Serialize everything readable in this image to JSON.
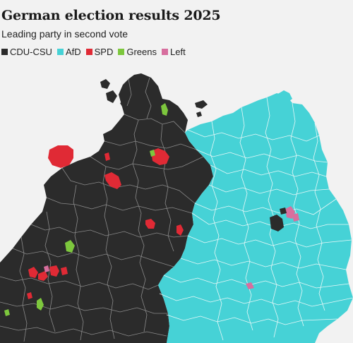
{
  "title": "German election results 2025",
  "subtitle": "Leading party in second vote",
  "legend": [
    {
      "label": "CDU-CSU",
      "color": "#2b2b2b"
    },
    {
      "label": "AfD",
      "color": "#46d2d6"
    },
    {
      "label": "SPD",
      "color": "#e02a35"
    },
    {
      "label": "Greens",
      "color": "#7dc73d"
    },
    {
      "label": "Left",
      "color": "#d76e9e"
    }
  ],
  "colors": {
    "background": "#f2f2f2",
    "border": "#8a8a8a",
    "border_light": "#e8f8f8"
  }
}
